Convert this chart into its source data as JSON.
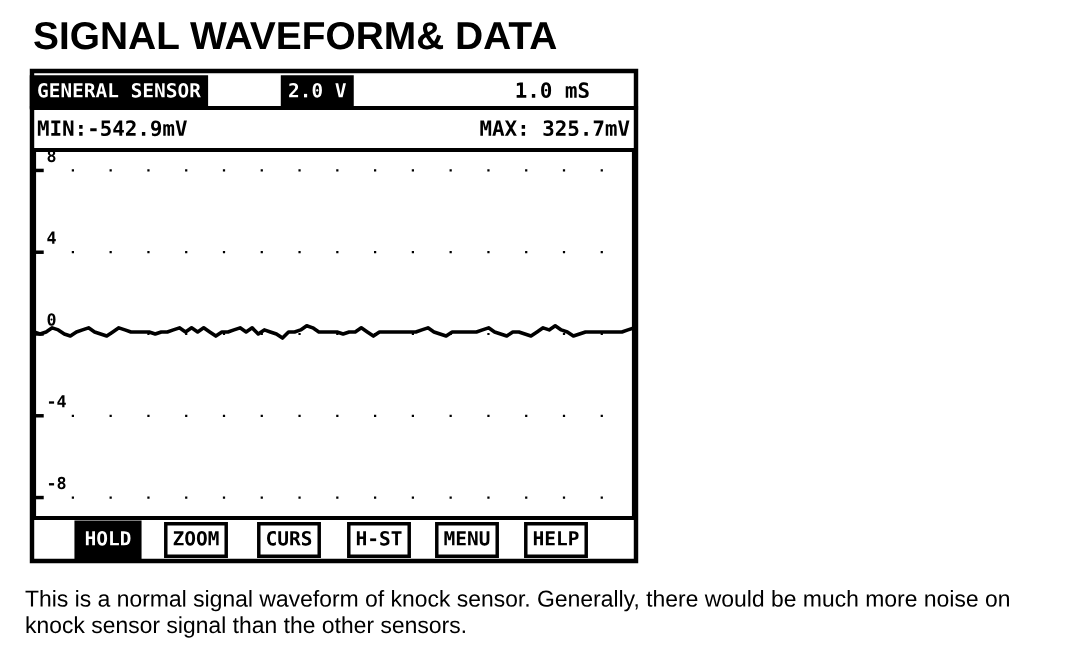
{
  "chart_data": {
    "type": "line",
    "title": "SIGNAL WAVEFORM& DATA",
    "categories": [
      null,
      null,
      null,
      null,
      null,
      null,
      null,
      null,
      null,
      null,
      null,
      null,
      null,
      null,
      null,
      null,
      null,
      null,
      null,
      null,
      null,
      null,
      null,
      null,
      null,
      null,
      null,
      null,
      null,
      null,
      null,
      null,
      null,
      null,
      null,
      null,
      null,
      null,
      null,
      null,
      null,
      null,
      null,
      null,
      null,
      null,
      null,
      null,
      null,
      null,
      null,
      null,
      null,
      null,
      null,
      null,
      null,
      null,
      null,
      null,
      null,
      null,
      null,
      null,
      null,
      null,
      null,
      null,
      null,
      null,
      null,
      null,
      null,
      null,
      null,
      null,
      null,
      null,
      null,
      null,
      null,
      null,
      null,
      null,
      null,
      null,
      null,
      null,
      null,
      null,
      null,
      null,
      null,
      null,
      null,
      null,
      null,
      null,
      null,
      null
    ],
    "series": [
      {
        "color": "#000000",
        "values": [
          0.1,
          0.0,
          0.1,
          0.3,
          0.2,
          0.0,
          -0.1,
          0.1,
          0.2,
          0.3,
          0.1,
          0.0,
          -0.1,
          0.1,
          0.3,
          0.2,
          0.1,
          0.1,
          0.1,
          0.1,
          0.0,
          0.1,
          0.1,
          0.2,
          0.3,
          0.1,
          0.3,
          0.1,
          0.3,
          0.1,
          -0.1,
          0.1,
          0.1,
          0.2,
          0.3,
          0.1,
          0.3,
          0.0,
          0.2,
          0.1,
          0.0,
          -0.2,
          0.1,
          0.1,
          0.2,
          0.4,
          0.3,
          0.1,
          0.1,
          0.1,
          0.1,
          0.0,
          0.1,
          0.1,
          0.3,
          0.1,
          -0.1,
          0.1,
          0.1,
          0.1,
          0.1,
          0.1,
          0.1,
          0.1,
          0.2,
          0.3,
          0.1,
          0.0,
          -0.1,
          0.1,
          0.1,
          0.1,
          0.1,
          0.1,
          0.2,
          0.3,
          0.1,
          0.0,
          -0.1,
          0.1,
          0.1,
          0.0,
          -0.1,
          0.1,
          0.3,
          0.2,
          0.4,
          0.2,
          0.1,
          -0.1,
          0.0,
          0.1,
          0.1,
          0.1,
          0.1,
          0.1,
          0.1,
          0.1,
          0.2,
          0.3
        ]
      }
    ],
    "ylim": [
      -9,
      9
    ],
    "yticks": [
      -8,
      -4,
      0,
      4,
      8
    ],
    "grid": "y",
    "tick_labels": "y",
    "annotations": [
      "GENERAL SENSOR",
      "2.0 V",
      "1.0 mS",
      "MIN:-542.9mV",
      "MAX: 325.7mV",
      "HOLD",
      "ZOOM",
      "CURS",
      "H-ST",
      "MENU",
      "HELP",
      "This is a normal signal waveform of knock sensor. Generally, there would be much more noise on knock sensor signal than the other sensors."
    ]
  }
}
